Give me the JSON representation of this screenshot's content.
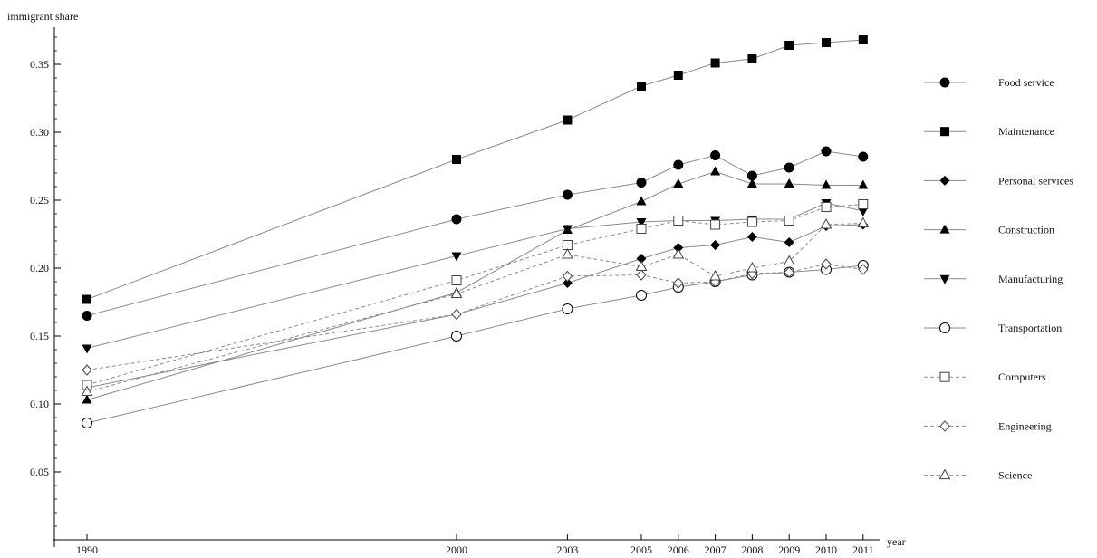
{
  "chart_data": {
    "type": "line",
    "ylabel": "immigrant share",
    "xlabel": "year",
    "x": [
      1990,
      2000,
      2003,
      2005,
      2006,
      2007,
      2008,
      2009,
      2010,
      2011
    ],
    "x_tick_labels": [
      "1990",
      "2000",
      "2003",
      "2005",
      "2006",
      "2007",
      "2008",
      "2009",
      "2010",
      "2011"
    ],
    "ylim": [
      0,
      0.38
    ],
    "y_ticks": [
      0.05,
      0.1,
      0.15,
      0.2,
      0.25,
      0.3,
      0.35
    ],
    "y_tick_labels": [
      "0.05",
      "0.10",
      "0.15",
      "0.20",
      "0.25",
      "0.30",
      "0.35"
    ],
    "legend_position": "right",
    "grid": false,
    "colors": {
      "solid_line": "#8a8a8a",
      "dashed_line": "#8a8a8a",
      "marker": "#000000",
      "axis": "#000000"
    },
    "series": [
      {
        "name": "Food service",
        "marker": "filled-circle",
        "line": "solid",
        "values": [
          0.165,
          0.236,
          0.254,
          0.263,
          0.276,
          0.283,
          0.268,
          0.274,
          0.286,
          0.282
        ]
      },
      {
        "name": "Maintenance",
        "marker": "filled-square",
        "line": "solid",
        "values": [
          0.177,
          0.28,
          0.309,
          0.334,
          0.342,
          0.351,
          0.354,
          0.364,
          0.366,
          0.368
        ]
      },
      {
        "name": "Personal services",
        "marker": "filled-diamond",
        "line": "solid",
        "values": [
          0.112,
          0.166,
          0.189,
          0.207,
          0.215,
          0.217,
          0.223,
          0.219,
          0.231,
          0.232
        ]
      },
      {
        "name": "Construction",
        "marker": "filled-triangle-up",
        "line": "solid",
        "values": [
          0.103,
          0.182,
          0.228,
          0.249,
          0.262,
          0.271,
          0.262,
          0.262,
          0.261,
          0.261
        ]
      },
      {
        "name": "Manufacturing",
        "marker": "filled-triangle-down",
        "line": "solid",
        "values": [
          0.141,
          0.209,
          0.229,
          0.234,
          0.235,
          0.235,
          0.236,
          0.236,
          0.248,
          0.242
        ]
      },
      {
        "name": "Transportation",
        "marker": "open-circle",
        "line": "solid",
        "values": [
          0.086,
          0.15,
          0.17,
          0.18,
          0.186,
          0.19,
          0.195,
          0.197,
          0.199,
          0.202
        ]
      },
      {
        "name": "Computers",
        "marker": "open-square",
        "line": "dashed",
        "values": [
          0.114,
          0.191,
          0.217,
          0.229,
          0.235,
          0.232,
          0.234,
          0.235,
          0.245,
          0.247
        ]
      },
      {
        "name": "Engineering",
        "marker": "open-diamond",
        "line": "dashed",
        "values": [
          0.125,
          0.166,
          0.194,
          0.195,
          0.189,
          0.19,
          0.196,
          0.197,
          0.203,
          0.199
        ]
      },
      {
        "name": "Science",
        "marker": "open-triangle-up",
        "line": "dashed",
        "values": [
          0.109,
          0.181,
          0.21,
          0.201,
          0.21,
          0.194,
          0.2,
          0.205,
          0.232,
          0.233
        ]
      }
    ]
  }
}
